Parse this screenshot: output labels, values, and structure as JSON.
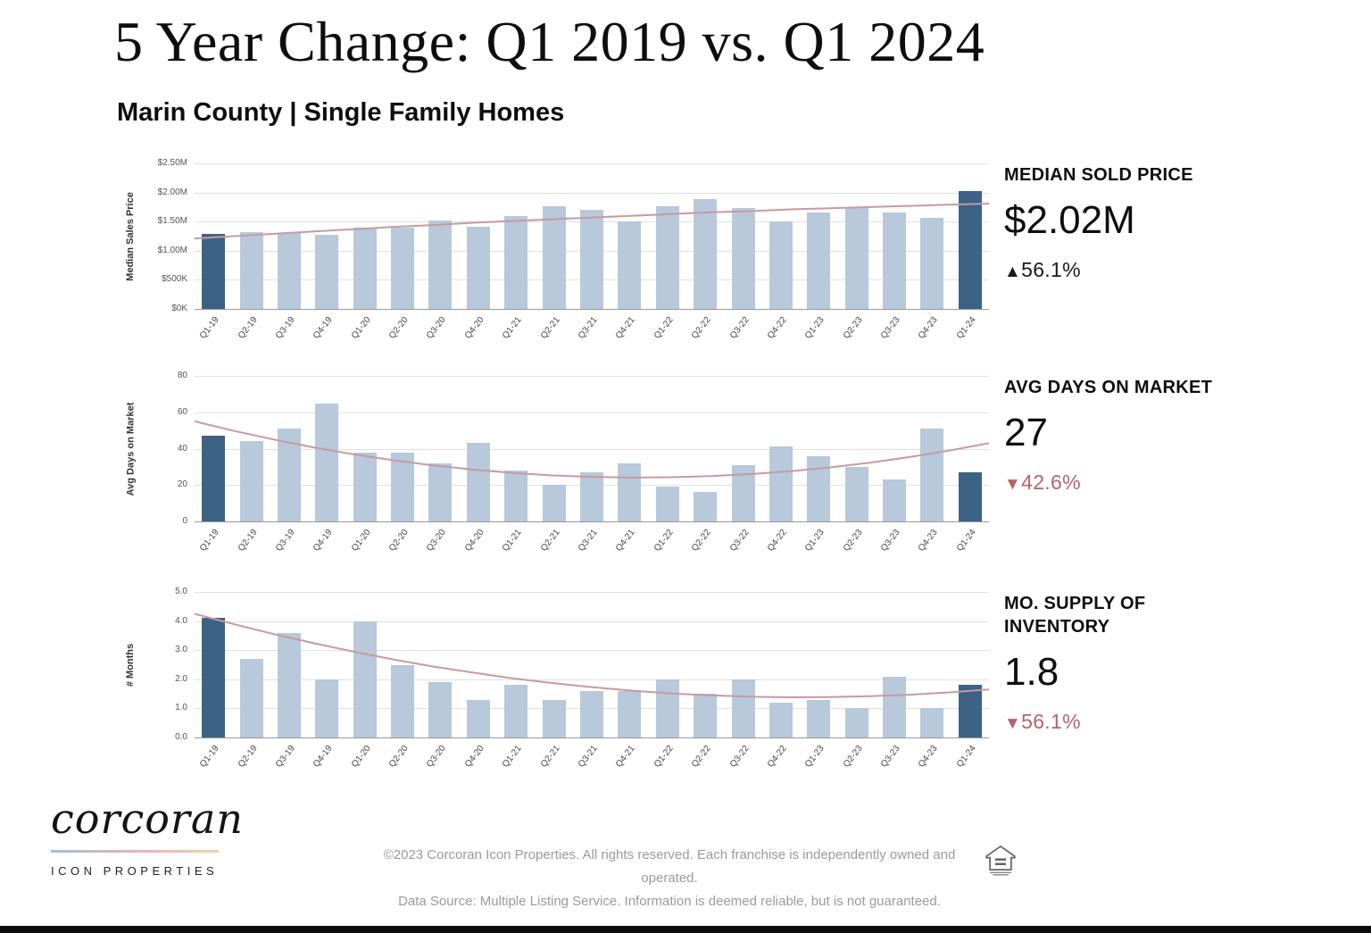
{
  "header": {
    "title": "5 Year Change: Q1 2019 vs. Q1 2024",
    "subtitle": "Marin County | Single Family Homes"
  },
  "colors": {
    "bar": "#b7c9da",
    "bar_accent": "#3c6386",
    "trend": "#c79aa1",
    "up": "#1a1a1a",
    "down": "#b4636d"
  },
  "chart_data": [
    {
      "type": "bar",
      "title": "MEDIAN SOLD PRICE",
      "ylabel": "Median Sales Price",
      "unit": "$M",
      "ylim": [
        0,
        2.5
      ],
      "yticks": [
        {
          "v": 0,
          "label": "$0K"
        },
        {
          "v": 0.5,
          "label": "$500K"
        },
        {
          "v": 1,
          "label": "$1.00M"
        },
        {
          "v": 1.5,
          "label": "$1.50M"
        },
        {
          "v": 2,
          "label": "$2.00M"
        },
        {
          "v": 2.5,
          "label": "$2.50M"
        }
      ],
      "categories": [
        "Q1-19",
        "Q2-19",
        "Q3-19",
        "Q4-19",
        "Q1-20",
        "Q2-20",
        "Q3-20",
        "Q4-20",
        "Q1-21",
        "Q2-21",
        "Q3-21",
        "Q4-21",
        "Q1-22",
        "Q2-22",
        "Q3-22",
        "Q4-22",
        "Q1-23",
        "Q2-23",
        "Q3-23",
        "Q4-23",
        "Q1-24"
      ],
      "values": [
        1.29,
        1.32,
        1.3,
        1.27,
        1.4,
        1.4,
        1.52,
        1.41,
        1.6,
        1.77,
        1.7,
        1.5,
        1.77,
        1.88,
        1.73,
        1.5,
        1.66,
        1.73,
        1.65,
        1.56,
        2.02
      ],
      "accent_indices": [
        0,
        20
      ],
      "trendline": [
        1.21,
        1.25,
        1.29,
        1.33,
        1.37,
        1.41,
        1.44,
        1.48,
        1.51,
        1.54,
        1.57,
        1.6,
        1.63,
        1.66,
        1.68,
        1.71,
        1.73,
        1.75,
        1.77,
        1.79,
        1.81
      ],
      "stat": {
        "heading": "MEDIAN SOLD PRICE",
        "value": "$2.02M",
        "arrow": "▲",
        "delta": "56.1%",
        "direction": "up"
      }
    },
    {
      "type": "bar",
      "title": "AVG DAYS ON MARKET",
      "ylabel": "Avg Days on Market",
      "unit": "days",
      "ylim": [
        0,
        80
      ],
      "yticks": [
        {
          "v": 0,
          "label": "0"
        },
        {
          "v": 20,
          "label": "20"
        },
        {
          "v": 40,
          "label": "40"
        },
        {
          "v": 60,
          "label": "60"
        },
        {
          "v": 80,
          "label": "80"
        }
      ],
      "categories": [
        "Q1-19",
        "Q2-19",
        "Q3-19",
        "Q4-19",
        "Q1-20",
        "Q2-20",
        "Q3-20",
        "Q4-20",
        "Q1-21",
        "Q2-21",
        "Q3-21",
        "Q4-21",
        "Q1-22",
        "Q2-22",
        "Q3-22",
        "Q4-22",
        "Q1-23",
        "Q2-23",
        "Q3-23",
        "Q4-23",
        "Q1-24"
      ],
      "values": [
        47,
        44,
        51,
        65,
        38,
        38,
        32,
        43,
        28,
        20,
        27,
        32,
        19,
        16,
        31,
        41,
        36,
        30,
        23,
        51,
        27
      ],
      "accent_indices": [
        0,
        20
      ],
      "trendline": [
        55,
        49.7,
        45,
        40.7,
        36.9,
        33.6,
        30.8,
        28.5,
        26.7,
        25.3,
        24.5,
        24.1,
        24.3,
        24.9,
        26,
        27.6,
        29.7,
        32.3,
        35.4,
        38.9,
        43
      ],
      "stat": {
        "heading": "AVG DAYS ON MARKET",
        "value": "27",
        "arrow": "▼",
        "delta": "42.6%",
        "direction": "down"
      }
    },
    {
      "type": "bar",
      "title": "MO. SUPPLY OF INVENTORY",
      "ylabel": "# Months",
      "unit": "months",
      "ylim": [
        0,
        5
      ],
      "yticks": [
        {
          "v": 0,
          "label": "0.0"
        },
        {
          "v": 1,
          "label": "1.0"
        },
        {
          "v": 2,
          "label": "2.0"
        },
        {
          "v": 3,
          "label": "3.0"
        },
        {
          "v": 4,
          "label": "4.0"
        },
        {
          "v": 5,
          "label": "5.0"
        }
      ],
      "categories": [
        "Q1-19",
        "Q2-19",
        "Q3-19",
        "Q4-19",
        "Q1-20",
        "Q2-20",
        "Q3-20",
        "Q4-20",
        "Q1-21",
        "Q2-21",
        "Q3-21",
        "Q4-21",
        "Q1-22",
        "Q2-22",
        "Q3-22",
        "Q4-22",
        "Q1-23",
        "Q2-23",
        "Q3-23",
        "Q4-23",
        "Q1-24"
      ],
      "values": [
        4.1,
        2.7,
        3.6,
        2.0,
        4.0,
        2.5,
        1.9,
        1.3,
        1.8,
        1.3,
        1.6,
        1.6,
        2.0,
        1.5,
        2.0,
        1.2,
        1.3,
        1.0,
        2.1,
        1.0,
        1.8
      ],
      "accent_indices": [
        0,
        20
      ],
      "trendline": [
        4.25,
        3.89,
        3.55,
        3.24,
        2.95,
        2.68,
        2.44,
        2.23,
        2.03,
        1.87,
        1.73,
        1.61,
        1.51,
        1.45,
        1.4,
        1.38,
        1.39,
        1.42,
        1.47,
        1.55,
        1.65
      ],
      "stat": {
        "heading": "MO. SUPPLY OF INVENTORY",
        "value": "1.8",
        "arrow": "▼",
        "delta": "56.1%",
        "direction": "down"
      }
    }
  ],
  "footer": {
    "logo_text": "corcoran",
    "logo_subtext": "ICON PROPERTIES",
    "line1": "©2023 Corcoran Icon Properties. All rights reserved. Each franchise is independently owned and operated.",
    "line2": "Data Source: Multiple Listing Service. Information is deemed reliable, but is not guaranteed."
  }
}
